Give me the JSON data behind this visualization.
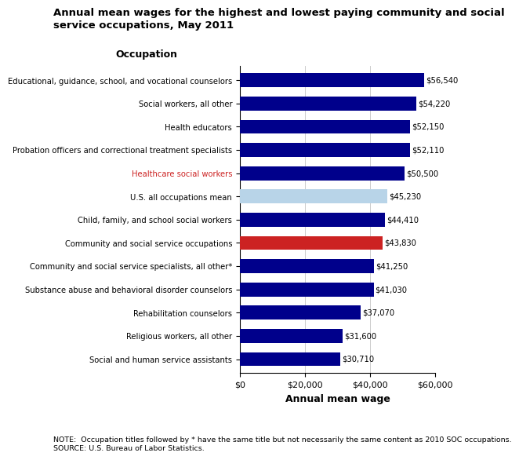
{
  "title": "Annual mean wages for the highest and lowest paying community and social\nservice occupations, May 2011",
  "xlabel": "Annual mean wage",
  "ylabel_header": "Occupation",
  "occupations": [
    "Educational, guidance, school, and vocational counselors",
    "Social workers, all other",
    "Health educators",
    "Probation officers and correctional treatment specialists",
    "Healthcare social workers",
    "U.S. all occupations mean",
    "Child, family, and school social workers",
    "Community and social service occupations",
    "Community and social service specialists, all other*",
    "Substance abuse and behavioral disorder counselors",
    "Rehabilitation counselors",
    "Religious workers, all other",
    "Social and human service assistants"
  ],
  "values": [
    56540,
    54220,
    52150,
    52110,
    50500,
    45230,
    44410,
    43830,
    41250,
    41030,
    37070,
    31600,
    30710
  ],
  "colors": [
    "#00008B",
    "#00008B",
    "#00008B",
    "#00008B",
    "#00008B",
    "#B8D4E8",
    "#00008B",
    "#CC2222",
    "#00008B",
    "#00008B",
    "#00008B",
    "#00008B",
    "#00008B"
  ],
  "label_colors": [
    "black",
    "black",
    "black",
    "black",
    "#CC2222",
    "black",
    "black",
    "black",
    "black",
    "black",
    "black",
    "black",
    "black"
  ],
  "value_labels": [
    "$56,540",
    "$54,220",
    "$52,150",
    "$52,110",
    "$50,500",
    "$45,230",
    "$44,410",
    "$43,830",
    "$41,250",
    "$41,030",
    "$37,070",
    "$31,600",
    "$30,710"
  ],
  "xlim": [
    0,
    60000
  ],
  "xticks": [
    0,
    20000,
    40000,
    60000
  ],
  "xtick_labels": [
    "$0",
    "$20,000",
    "$40,000",
    "$60,000"
  ],
  "note_line1": "NOTE:  Occupation titles followed by * have the same title but not necessarily the same content as 2010 SOC occupations.",
  "note_line2": "SOURCE: U.S. Bureau of Labor Statistics.",
  "background_color": "#FFFFFF",
  "bar_height": 0.6
}
